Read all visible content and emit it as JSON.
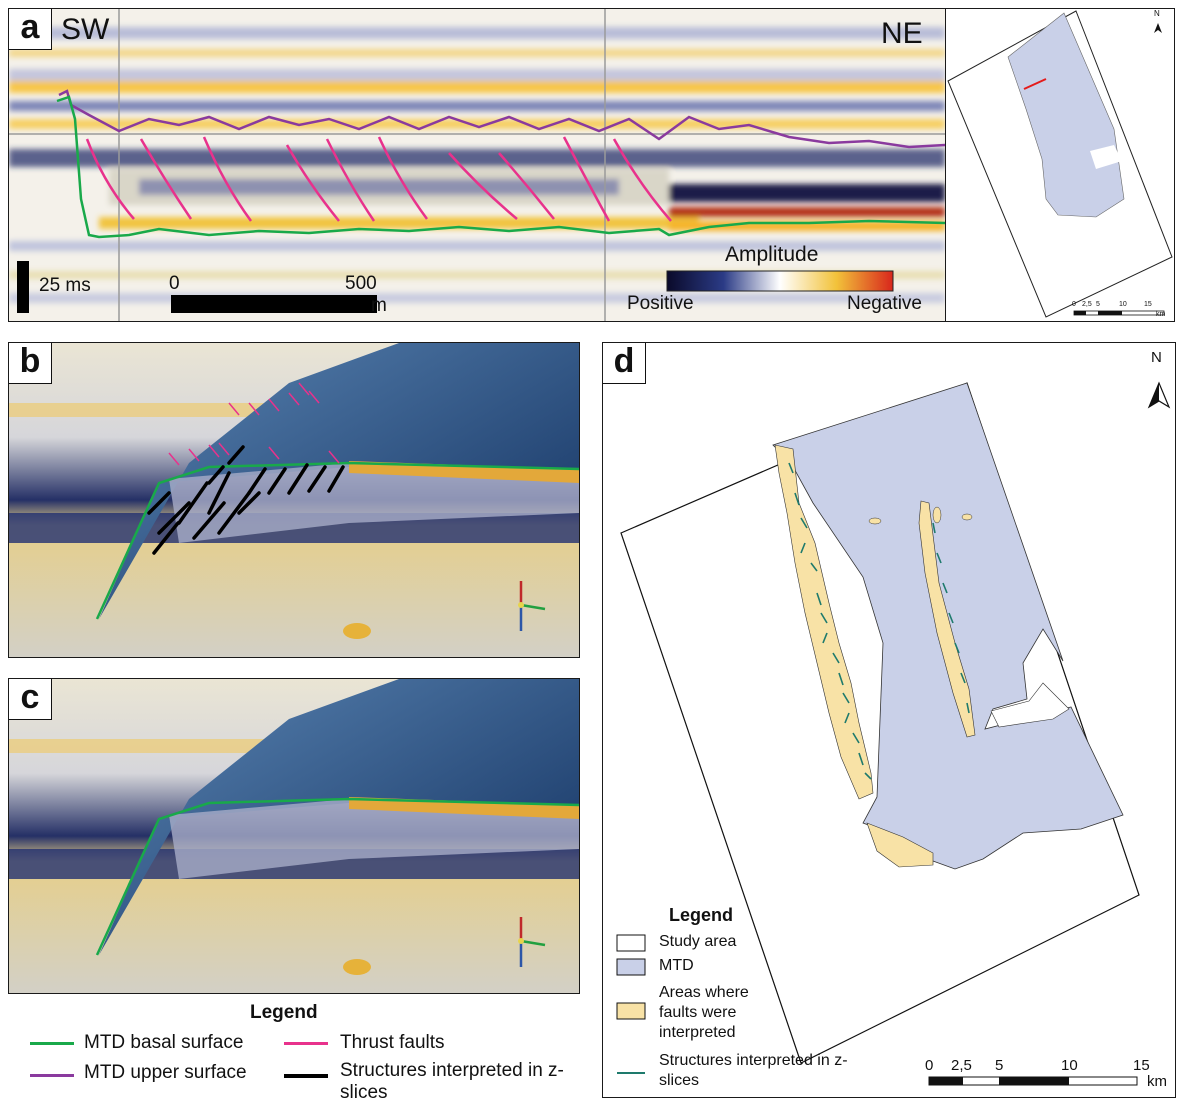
{
  "panel_a": {
    "tag": "a",
    "left_dir": "SW",
    "right_dir": "NE",
    "scale_time": "25 ms",
    "scale_dist_start": "0",
    "scale_dist_end": "500",
    "scale_dist_unit": "m",
    "amplitude": {
      "title": "Amplitude",
      "low_label": "Positive",
      "high_label": "Negative",
      "colors": [
        "#0a0a2a",
        "#2b3b86",
        "#ffffff",
        "#f2c23a",
        "#d8261c"
      ]
    }
  },
  "inset_map": {
    "north": "N",
    "scale_ticks": [
      "0",
      "2,5",
      "5",
      "10",
      "15"
    ],
    "scale_unit": "km"
  },
  "panel_b": {
    "tag": "b"
  },
  "panel_c": {
    "tag": "c"
  },
  "legend_bc": {
    "title": "Legend",
    "items": [
      {
        "label": "MTD basal surface",
        "color": "#19a94a"
      },
      {
        "label": "MTD upper surface",
        "color": "#8a3a9e"
      },
      {
        "label": "Thrust faults",
        "color": "#e8328c"
      },
      {
        "label": "Structures interpreted in z-slices",
        "color": "#000000"
      }
    ]
  },
  "panel_d": {
    "tag": "d",
    "north": "N",
    "legend_title": "Legend",
    "legend": [
      {
        "label": "Study area",
        "color": "#ffffff"
      },
      {
        "label": "MTD",
        "color": "#c9d0e8"
      },
      {
        "label": "Areas where faults were interpreted",
        "color": "#f8e2a6"
      },
      {
        "label": "Structures interpreted in z-slices",
        "color": "#1e7a6c"
      }
    ],
    "scale_ticks": [
      "0",
      "2,5",
      "5",
      "10",
      "15"
    ],
    "scale_unit": "km"
  }
}
